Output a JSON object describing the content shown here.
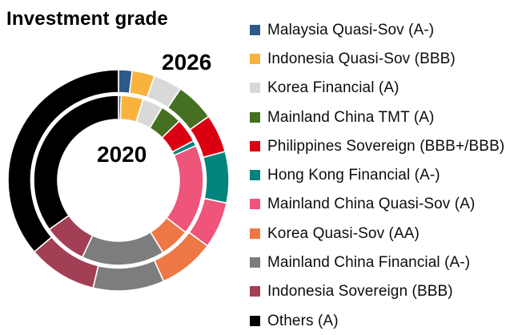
{
  "title": "Investment grade",
  "chart_data": {
    "type": "pie",
    "subtype": "double-ring-donut",
    "title": "Investment grade",
    "direction": "clockwise",
    "start_angle_deg": 0,
    "legend_position": "right",
    "categories": [
      "Malaysia Quasi-Sov (A-)",
      "Indonesia Quasi-Sov (BBB)",
      "Korea Financial (A)",
      "Mainland China TMT (A)",
      "Philippines Sovereign (BBB+/BBB)",
      "Hong Kong Financial (A-)",
      "Mainland China Quasi-Sov (A)",
      "Korea Quasi-Sov (AA)",
      "Mainland China Financial (A-)",
      "Indonesia Sovereign (BBB)",
      "Others (A)"
    ],
    "colors": [
      "#2F5A87",
      "#F8B33F",
      "#D9D9D9",
      "#456F21",
      "#DB0011",
      "#00847D",
      "#EF547B",
      "#ED7845",
      "#7D7D7D",
      "#A23F55",
      "#000000"
    ],
    "series": [
      {
        "name": "2020",
        "ring": "inner",
        "values_pct": [
          0.5,
          4.2,
          3.9,
          4.1,
          4.6,
          1.0,
          17.2,
          5.7,
          15.8,
          8.2,
          34.8
        ]
      },
      {
        "name": "2026",
        "ring": "outer",
        "values_pct": [
          2.0,
          3.3,
          4.2,
          5.7,
          5.6,
          7.5,
          6.8,
          8.2,
          10.4,
          10.1,
          36.2
        ]
      }
    ],
    "ring_labels": {
      "inner": "2020",
      "outer": "2026"
    }
  },
  "labels": {
    "inner_year": "2020",
    "outer_year": "2026"
  }
}
